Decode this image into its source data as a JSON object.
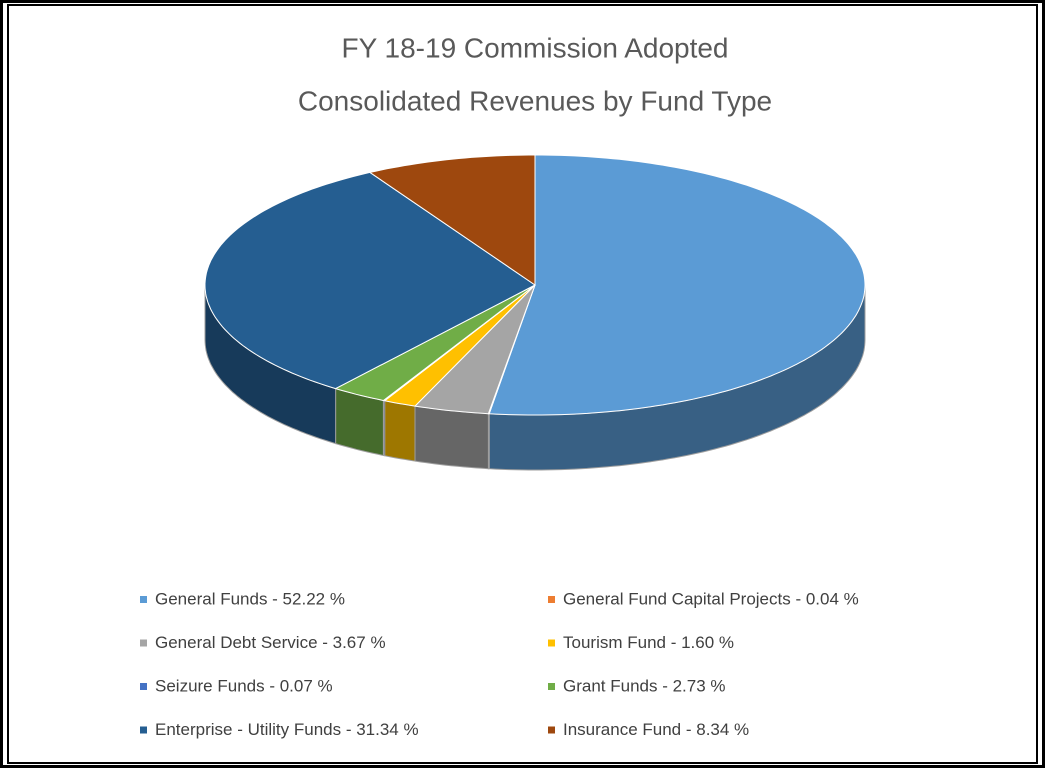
{
  "chart_data": {
    "type": "pie3d",
    "title": [
      "FY 18-19 Commission Adopted",
      "Consolidated Revenues by Fund Type"
    ],
    "categories": [
      "General Funds - 52.22 %",
      "General Fund Capital Projects - 0.04 %",
      "General Debt Service - 3.67 %",
      "Tourism Fund - 1.60 %",
      "Seizure Funds - 0.07 %",
      "Grant Funds - 2.73 %",
      "Enterprise - Utility Funds - 31.34 %",
      "Insurance Fund - 8.34 %"
    ],
    "values": [
      52.22,
      0.04,
      3.67,
      1.6,
      0.07,
      2.73,
      31.34,
      8.34
    ],
    "colors": [
      "#5b9bd5",
      "#ed7d31",
      "#a5a5a5",
      "#ffc000",
      "#4472c4",
      "#70ad47",
      "#255e91",
      "#9e480e"
    ],
    "legend": "bottom"
  }
}
